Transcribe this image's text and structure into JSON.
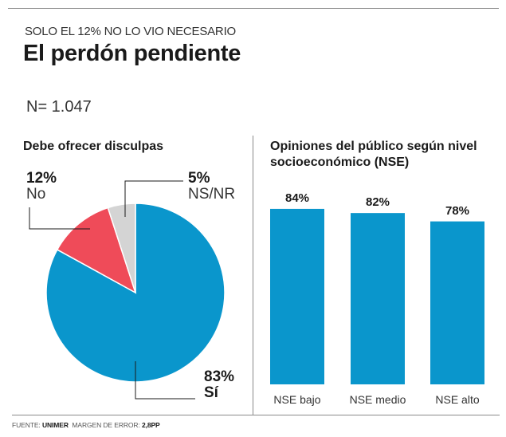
{
  "header": {
    "kicker": "SOLO EL 12% NO LO VIO NECESARIO",
    "title": "El perdón pendiente",
    "sample": "N= 1.047"
  },
  "footer": {
    "source_label": "FUENTE:",
    "source_value": "UNIMER",
    "margin_label": "MARGEN DE ERROR:",
    "margin_value": "2,8PP"
  },
  "colors": {
    "si": "#0a96cc",
    "no": "#ef4b59",
    "nsnr": "#d4d4d4",
    "bar": "#0a96cc",
    "rule": "#8a8a8a"
  },
  "chart_data": [
    {
      "type": "pie",
      "title": "Debe ofrecer disculpas",
      "slices": [
        {
          "label": "Sí",
          "value": 83,
          "display": "83%",
          "color": "#0a96cc"
        },
        {
          "label": "No",
          "value": 12,
          "display": "12%",
          "color": "#ef4b59"
        },
        {
          "label": "NS/NR",
          "value": 5,
          "display": "5%",
          "color": "#d4d4d4"
        }
      ]
    },
    {
      "type": "bar",
      "title": "Opiniones del público según nivel socioeconómico (NSE)",
      "categories": [
        "NSE bajo",
        "NSE medio",
        "NSE alto"
      ],
      "values": [
        84,
        82,
        78
      ],
      "labels": [
        "84%",
        "82%",
        "78%"
      ],
      "xlabel": "",
      "ylabel": "",
      "ylim": [
        0,
        100
      ],
      "grid": false
    }
  ]
}
